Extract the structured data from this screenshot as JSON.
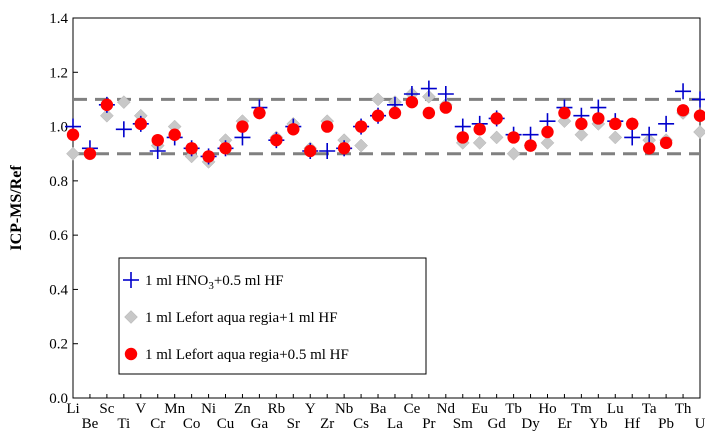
{
  "chart_data": {
    "type": "scatter",
    "title": "",
    "xlabel": "",
    "ylabel": "ICP-MS/Ref",
    "ylim": [
      0.0,
      1.4
    ],
    "yticks": [
      "0.0",
      "0.2",
      "0.4",
      "0.6",
      "0.8",
      "1.0",
      "1.2",
      "1.4"
    ],
    "reference_lines": [
      0.9,
      1.1
    ],
    "grid": false,
    "legend_position": "bottom-left",
    "categories": [
      "Li",
      "Be",
      "Sc",
      "Ti",
      "V",
      "Cr",
      "Mn",
      "Co",
      "Ni",
      "Cu",
      "Zn",
      "Ga",
      "Rb",
      "Sr",
      "Y",
      "Zr",
      "Nb",
      "Cs",
      "Ba",
      "La",
      "Ce",
      "Pr",
      "Nd",
      "Sm",
      "Eu",
      "Gd",
      "Tb",
      "Dy",
      "Ho",
      "Er",
      "Tm",
      "Yb",
      "Lu",
      "Hf",
      "Ta",
      "Pb",
      "Th",
      "U"
    ],
    "series": [
      {
        "name": "1 ml HNO3+0.5 ml HF",
        "legend_main": "1 ml HNO",
        "legend_sub": "3",
        "legend_tail": "+0.5 ml HF",
        "marker": "plus",
        "color": "#0000cc",
        "values": [
          1.0,
          0.92,
          1.08,
          0.99,
          1.01,
          0.91,
          0.96,
          0.92,
          0.89,
          0.92,
          0.96,
          1.07,
          0.95,
          1.0,
          0.91,
          0.91,
          0.92,
          1.0,
          1.04,
          1.08,
          1.12,
          1.14,
          1.12,
          1.0,
          1.01,
          1.03,
          0.97,
          0.97,
          1.02,
          1.07,
          1.04,
          1.07,
          1.02,
          0.96,
          0.97,
          1.01,
          1.13,
          1.1
        ]
      },
      {
        "name": "1 ml Lefort aqua regia+1 ml HF",
        "marker": "diamond",
        "color": "#c8c8c8",
        "values": [
          0.9,
          0.9,
          1.04,
          1.09,
          1.04,
          0.93,
          1.0,
          0.89,
          0.87,
          0.95,
          1.02,
          1.05,
          0.96,
          1.01,
          0.92,
          1.02,
          0.95,
          0.93,
          1.1,
          1.09,
          1.12,
          1.11,
          1.08,
          0.94,
          0.94,
          0.96,
          0.9,
          0.93,
          0.94,
          1.02,
          0.97,
          1.01,
          0.96,
          1.01,
          0.95,
          0.95,
          1.05,
          0.98
        ]
      },
      {
        "name": "1 ml Lefort aqua regia+0.5 ml HF",
        "marker": "circle",
        "color": "#ff0000",
        "values": [
          0.97,
          0.9,
          1.08,
          null,
          1.01,
          0.95,
          0.97,
          0.92,
          0.89,
          0.92,
          1.0,
          1.05,
          0.95,
          0.99,
          0.91,
          1.0,
          0.92,
          1.0,
          1.04,
          1.05,
          1.09,
          1.05,
          1.07,
          0.96,
          0.99,
          1.03,
          0.96,
          0.93,
          0.98,
          1.05,
          1.01,
          1.03,
          1.01,
          1.01,
          0.92,
          0.94,
          1.06,
          1.04
        ]
      }
    ]
  }
}
